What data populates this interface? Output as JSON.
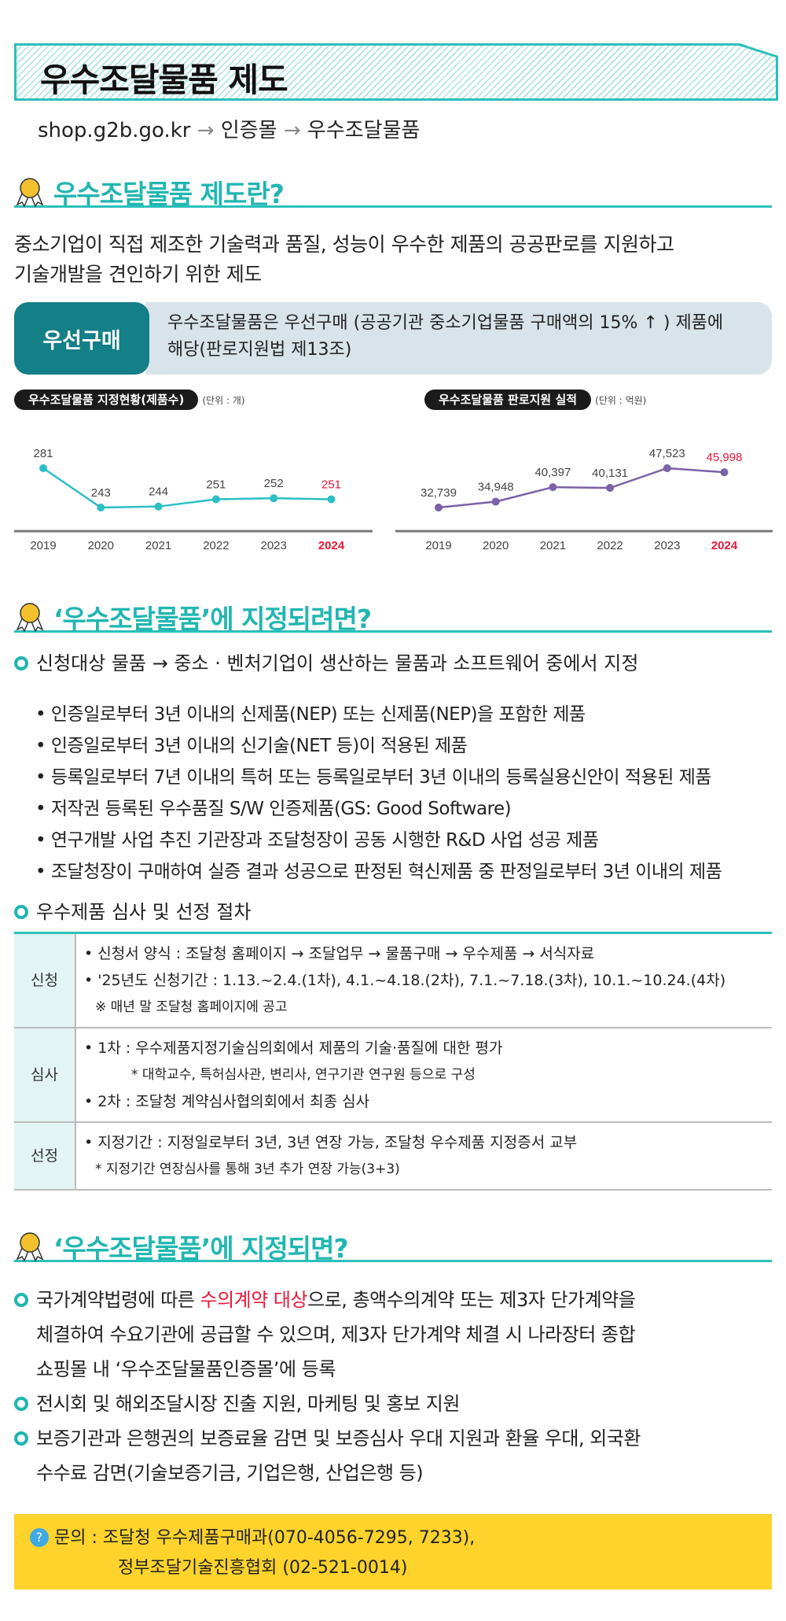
{
  "header": {
    "title": "우수조달물품 제도",
    "url": "shop.g2b.go.kr",
    "path1": "인증몰",
    "path2": "우수조달물품",
    "arrow": "→"
  },
  "section1": {
    "title": "우수조달물품 제도란?",
    "desc1": "중소기업이 직접 제조한 기술력과 품질, 성능이 우수한 제품의 공공판로를 지원하고",
    "desc2": "기술개발을 견인하기 위한 제도",
    "priority_label": "우선구매",
    "priority_text1": "우수조달물품은 우선구매 (공공기관 중소기업물품 구매액의 15% ↑ ) 제품에",
    "priority_text2": "해당(판로지원법 제13조)"
  },
  "chart_data": [
    {
      "type": "line",
      "title": "우수조달물품 지정현황(제품수)",
      "unit": "(단위 : 개)",
      "categories": [
        "2019",
        "2020",
        "2021",
        "2022",
        "2023",
        "2024"
      ],
      "values": [
        281,
        243,
        244,
        251,
        252,
        251
      ],
      "labels": [
        "281",
        "243",
        "244",
        "251",
        "252",
        "251"
      ],
      "color": "#2bbfc4",
      "highlight": "#e8183a"
    },
    {
      "type": "line",
      "title": "우수조달물품 판로지원 실적",
      "unit": "(단위 : 억원)",
      "categories": [
        "2019",
        "2020",
        "2021",
        "2022",
        "2023",
        "2024"
      ],
      "values": [
        32739,
        34948,
        40397,
        40131,
        47523,
        45998
      ],
      "labels": [
        "32,739",
        "34,948",
        "40,397",
        "40,131",
        "47,523",
        "45,998"
      ],
      "color": "#7a61a8",
      "highlight": "#e8183a"
    }
  ],
  "section2": {
    "title": "‘우수조달물품’에 지정되려면?",
    "target": "신청대상 물품 → 중소 · 벤처기업이 생산하는 물품과 소프트웨어 중에서 지정",
    "items": [
      "• 인증일로부터 3년 이내의 신제품(NEP) 또는 신제품(NEP)을 포함한 제품",
      "• 인증일로부터 3년 이내의 신기술(NET 등)이 적용된 제품",
      "• 등록일로부터 7년 이내의 특허 또는 등록일로부터 3년 이내의 등록실용신안이 적용된 제품",
      "• 저작권 등록된 우수품질 S/W 인증제품(GS: Good Software)",
      "• 연구개발 사업 추진 기관장과 조달청장이 공동 시행한 R&D 사업 성공 제품",
      "• 조달청장이 구매하여 실증 결과 성공으로 판정된 혁신제품 중 판정일로부터 3년 이내의 제품"
    ],
    "procedure_title": "우수제품 심사 및 선정 절차",
    "table": [
      {
        "key": "신청",
        "lines": [
          "• 신청서 양식 : 조달청 홈페이지 → 조달업무 → 물품구매 → 우수제품 → 서식자료",
          "• '25년도 신청기간 : 1.13.~2.4.(1차), 4.1.~4.18.(2차), 7.1.~7.18.(3차), 10.1.~10.24.(4차)",
          "※ 매년 말 조달청 홈페이지에 공고"
        ]
      },
      {
        "key": "심사",
        "lines": [
          "• 1차 : 우수제품지정기술심의회에서 제품의 기술·품질에 대한 평가",
          "* 대학교수, 특허심사관, 변리사, 연구기관 연구원 등으로 구성",
          "• 2차 : 조달청 계약심사협의회에서 최종 심사"
        ]
      },
      {
        "key": "선정",
        "lines": [
          "• 지정기간 : 지정일로부터 3년, 3년 연장 가능, 조달청 우수제품 지정증서 교부",
          "* 지정기간 연장심사를 통해 3년 추가 연장 가능(3+3)"
        ]
      }
    ]
  },
  "section3": {
    "title": "‘우수조달물품’에 지정되면?",
    "b1_pre": "국가계약법령에 따른 ",
    "b1_hl": "수의계약 대상",
    "b1_post": "으로, 총액수의계약 또는 제3자 단가계약을",
    "b1_l2": "체결하여 수요기관에 공급할 수 있으며, 제3자 단가계약 체결 시 나라장터 종합",
    "b1_l3": "쇼핑몰 내 ‘우수조달물품인증몰’에 등록",
    "b2": "전시회 및 해외조달시장 진출 지원, 마케팅 및 홍보 지원",
    "b3_l1": "보증기관과 은행권의 보증료율 감면 및 보증심사 우대 지원과 환율 우대, 외국환",
    "b3_l2": "수수료 감면(기술보증기금, 기업은행, 산업은행 등)"
  },
  "contact": {
    "label": "문의 :",
    "line1": "조달청 우수제품구매과(070-4056-7295, 7233),",
    "line2": "정부조달기술진흥협회 (02-521-0014)"
  }
}
